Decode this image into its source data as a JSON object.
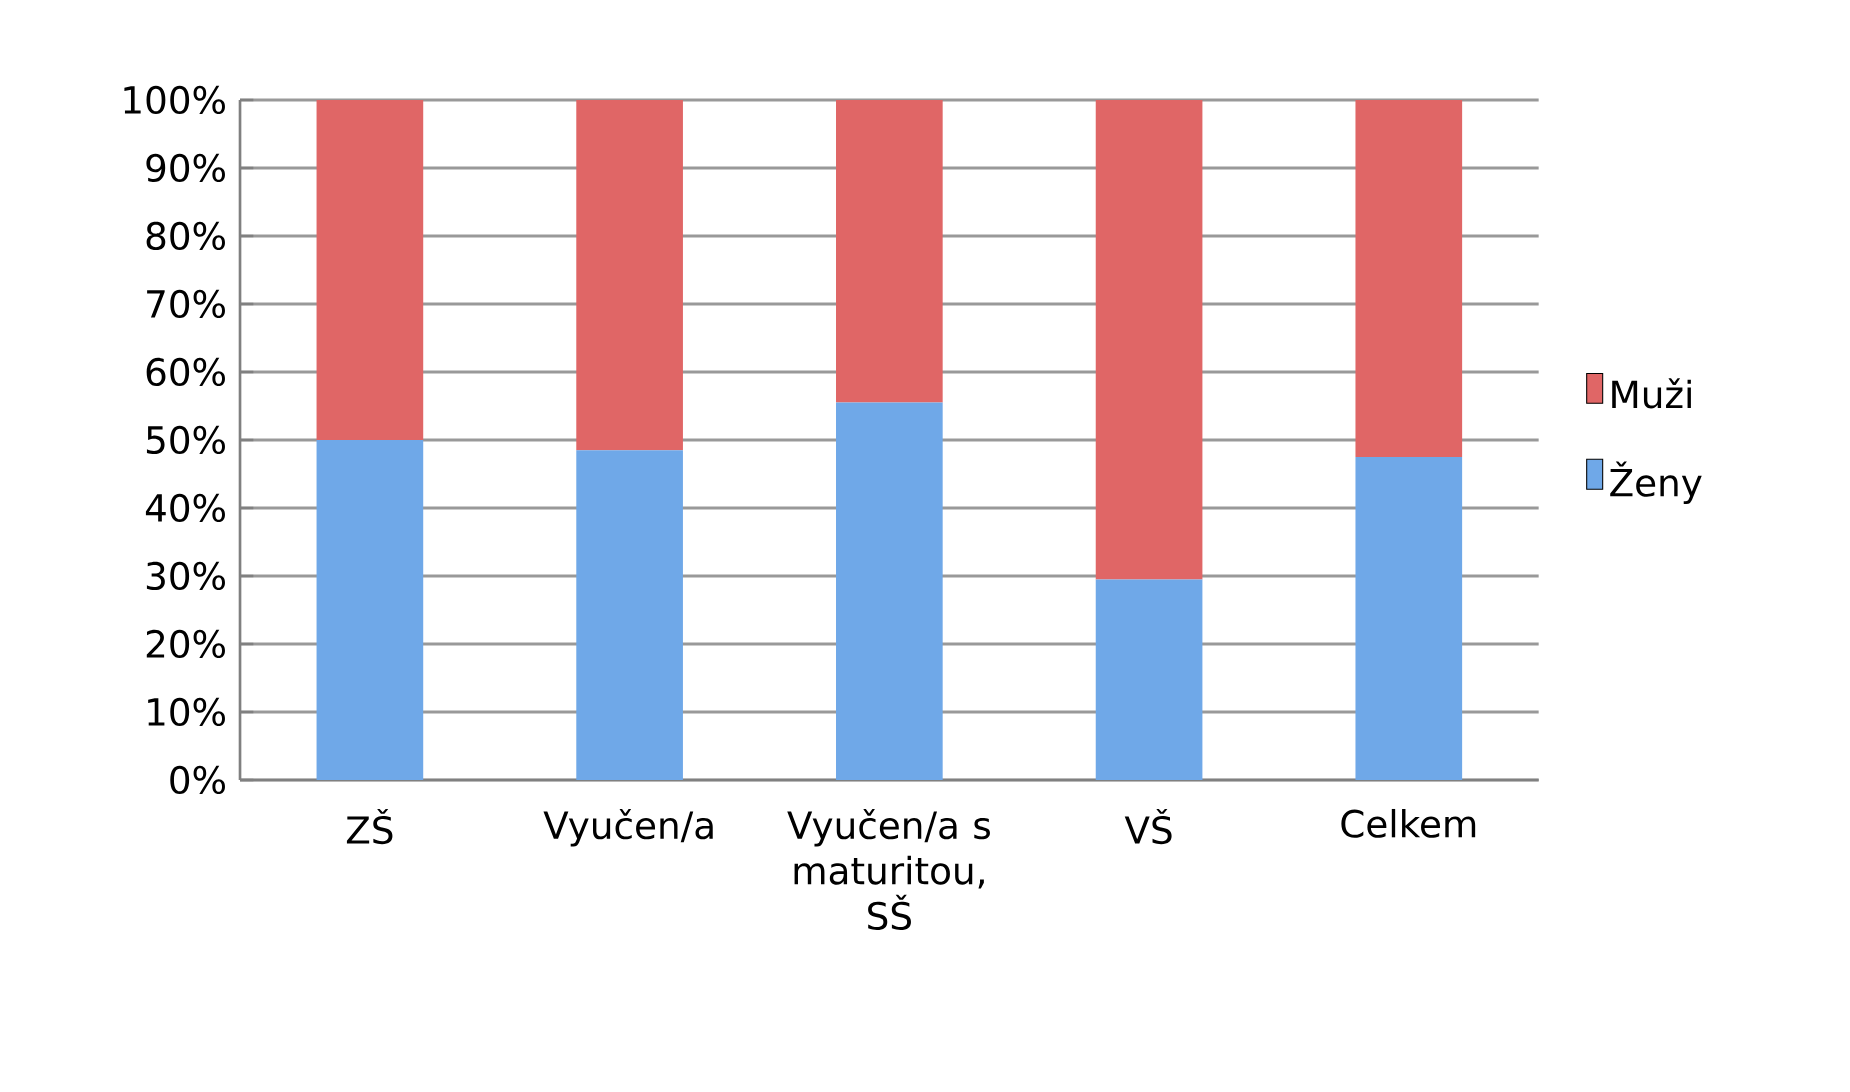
{
  "chart_data": {
    "type": "bar",
    "stacked": true,
    "categories": [
      "ZŠ",
      "Vyučen/a",
      "Vyučen/a s maturitou, SŠ",
      "VŠ",
      "Celkem"
    ],
    "series": [
      {
        "name": "Ženy",
        "color": "#6fa8e8",
        "values": [
          50,
          48.5,
          55.5,
          29.5,
          47.5
        ]
      },
      {
        "name": "Muži",
        "color": "#e06666",
        "values": [
          50,
          51.5,
          44.5,
          70.5,
          52.5
        ]
      }
    ],
    "ylim": [
      0,
      100
    ],
    "yticks": [
      {
        "value": 0,
        "label": "0%"
      },
      {
        "value": 10,
        "label": "10%"
      },
      {
        "value": 20,
        "label": "20%"
      },
      {
        "value": 30,
        "label": "30%"
      },
      {
        "value": 40,
        "label": "40%"
      },
      {
        "value": 50,
        "label": "50%"
      },
      {
        "value": 60,
        "label": "60%"
      },
      {
        "value": 70,
        "label": "70%"
      },
      {
        "value": 80,
        "label": "80%"
      },
      {
        "value": 90,
        "label": "90%"
      },
      {
        "value": 100,
        "label": "100%"
      }
    ],
    "grid": "y",
    "legend": "right"
  }
}
